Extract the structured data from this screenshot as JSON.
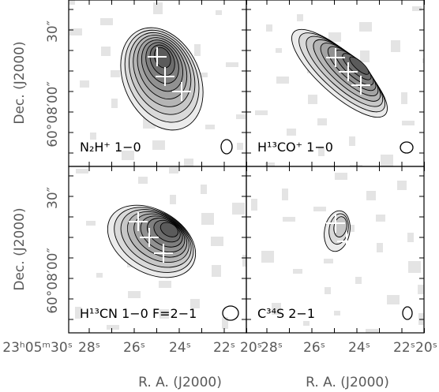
{
  "panels": [
    {
      "label": "N₂H⁺ 1−0"
    },
    {
      "label": "H¹³CO⁺ 1−0"
    },
    {
      "label": "H¹³CN 1−0 F=2−1"
    },
    {
      "label": "C³⁴S 2−1"
    }
  ],
  "x_axis": {
    "left_ticks": [
      "23ʰ05ᵐ30ˢ",
      "28ˢ",
      "26ˢ",
      "24ˢ",
      "22ˢ",
      "20ˢ"
    ],
    "right_ticks": [
      "28ˢ",
      "26ˢ",
      "24ˢ",
      "22ˢ",
      "20ˢ"
    ],
    "label": "R. A. (J2000)"
  },
  "y_axis": {
    "ticks": [
      "30″",
      "60°08′00″"
    ],
    "label": "Dec. (J2000)"
  }
}
